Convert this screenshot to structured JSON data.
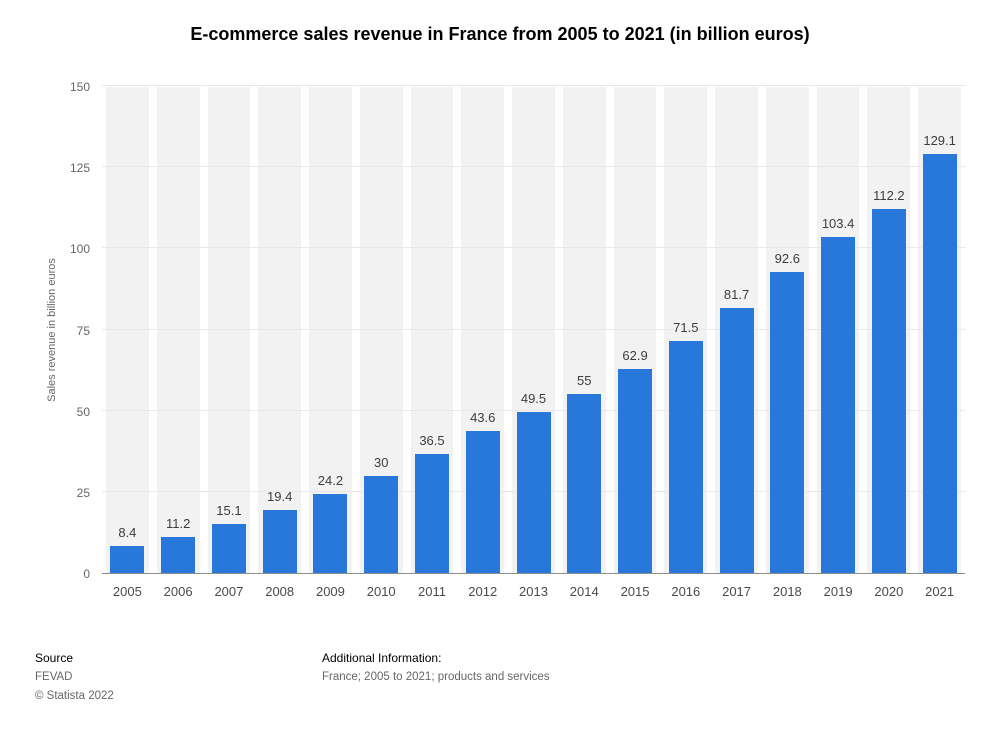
{
  "title": "E-commerce sales revenue in France from 2005 to 2021 (in billion euros)",
  "chart_data": {
    "type": "bar",
    "title": "E-commerce sales revenue in France from 2005 to 2021 (in billion euros)",
    "categories": [
      "2005",
      "2006",
      "2007",
      "2008",
      "2009",
      "2010",
      "2011",
      "2012",
      "2013",
      "2014",
      "2015",
      "2016",
      "2017",
      "2018",
      "2019",
      "2020",
      "2021"
    ],
    "values": [
      8.4,
      11.2,
      15.1,
      19.4,
      24.2,
      30,
      36.5,
      43.6,
      49.5,
      55,
      62.9,
      71.5,
      81.7,
      92.6,
      103.4,
      112.2,
      129.1
    ],
    "value_labels": [
      "8.4",
      "11.2",
      "15.1",
      "19.4",
      "24.2",
      "30",
      "36.5",
      "43.6",
      "49.5",
      "55",
      "62.9",
      "71.5",
      "81.7",
      "92.6",
      "103.4",
      "112.2",
      "129.1"
    ],
    "xlabel": "",
    "ylabel": "Sales revenue in billion euros",
    "ylim": [
      0,
      150
    ],
    "yticks": [
      0,
      25,
      50,
      75,
      100,
      125,
      150
    ],
    "grid": true,
    "legend": "none",
    "bar_color": "#2878dc",
    "band_color": "#f2f2f2"
  },
  "footer": {
    "source_label": "Source",
    "source_value": "FEVAD",
    "copyright": "© Statista 2022",
    "additional_label": "Additional Information:",
    "additional_value": "France; 2005 to 2021; products and services"
  }
}
